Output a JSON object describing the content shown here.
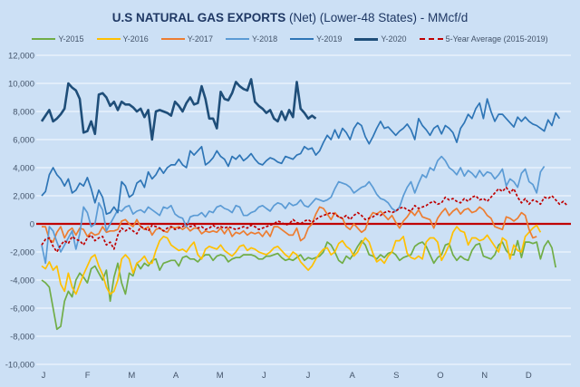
{
  "chart_data": {
    "type": "line",
    "title_bold": "U.S NATURAL GAS EXPORTS",
    "title_rest": " (Net) (Lower-48 States) - MMcf/d",
    "xlabel": "",
    "ylabel": "",
    "ylim": [
      -10000,
      12000
    ],
    "yticks": [
      12000,
      10000,
      8000,
      6000,
      4000,
      2000,
      0,
      -2000,
      -4000,
      -6000,
      -8000,
      -10000
    ],
    "ytick_labels": [
      "12,000",
      "10,000",
      "8,000",
      "6,000",
      "4,000",
      "2,000",
      "0",
      "-2,000",
      "-4,000",
      "-6,000",
      "-8,000",
      "-10,000"
    ],
    "categories": [
      "J",
      "F",
      "M",
      "A",
      "M",
      "J",
      "J",
      "A",
      "S",
      "O",
      "N",
      "D"
    ],
    "grid": true,
    "legend_position": "top",
    "zero_line_color": "#c00000",
    "series": [
      {
        "name": "Y-2015",
        "color": "#70ad47",
        "style": "solid",
        "values": [
          -4000,
          -4200,
          -4500,
          -6000,
          -7500,
          -7300,
          -5500,
          -4800,
          -5200,
          -4000,
          -3500,
          -3800,
          -4200,
          -3200,
          -3000,
          -3500,
          -4000,
          -3300,
          -5500,
          -3800,
          -2800,
          -4200,
          -5000,
          -3500,
          -3700,
          -2800,
          -3200,
          -2800,
          -3000,
          -2600,
          -2500,
          -3300,
          -2800,
          -2700,
          -2600,
          -2600,
          -3000,
          -2400,
          -2300,
          -2500,
          -2500,
          -2700,
          -2400,
          -2200,
          -2200,
          -2600,
          -2300,
          -2200,
          -2300,
          -2700,
          -2500,
          -2400,
          -2400,
          -2200,
          -2200,
          -2200,
          -2300,
          -2500,
          -2500,
          -2300,
          -2300,
          -2200,
          -2100,
          -2400,
          -2600,
          -2500,
          -2600,
          -2400,
          -2200,
          -2600,
          -2400,
          -2500,
          -2400,
          -2300,
          -2000,
          -1300,
          -1500,
          -2000,
          -2600,
          -2800,
          -2300,
          -2500,
          -2100,
          -1600,
          -1200,
          -1500,
          -2200,
          -2300,
          -2500,
          -2200,
          -2400,
          -2100,
          -2000,
          -2200,
          -2600,
          -2400,
          -2300,
          -2200,
          -1600,
          -1400,
          -1300,
          -1600,
          -2200,
          -2800,
          -2400,
          -2200,
          -1500,
          -1400,
          -2200,
          -2600,
          -2300,
          -2500,
          -2600,
          -1900,
          -1500,
          -1400,
          -2300,
          -2400,
          -2500,
          -2200,
          -1500,
          -1300,
          -1900,
          -2200,
          -2200,
          -1200,
          -2400,
          -1300,
          -1300,
          -1400,
          -1300,
          -2500,
          -1600,
          -1200,
          -1700,
          -3100
        ]
      },
      {
        "name": "Y-2016",
        "color": "#ffc000",
        "style": "solid",
        "values": [
          -3000,
          -3200,
          -2700,
          -3300,
          -3000,
          -4300,
          -4800,
          -3500,
          -4500,
          -5000,
          -4300,
          -3600,
          -3000,
          -2400,
          -2200,
          -3000,
          -3600,
          -4500,
          -5000,
          -4800,
          -4000,
          -2500,
          -2200,
          -2500,
          -3500,
          -2800,
          -2600,
          -2300,
          -2800,
          -2800,
          -1900,
          -1200,
          -900,
          -1000,
          -1500,
          -1700,
          -1900,
          -1800,
          -2000,
          -1600,
          -1300,
          -2200,
          -2500,
          -1800,
          -1600,
          -1700,
          -1800,
          -1500,
          -1900,
          -2100,
          -2300,
          -2000,
          -1600,
          -1500,
          -1900,
          -1700,
          -1800,
          -2000,
          -2100,
          -2200,
          -2000,
          -1700,
          -1600,
          -1900,
          -2200,
          -2400,
          -2000,
          -2200,
          -2700,
          -3000,
          -3300,
          -3000,
          -2500,
          -2100,
          -1800,
          -1700,
          -2200,
          -2000,
          -1400,
          -1200,
          -1600,
          -1800,
          -2300,
          -2000,
          -1400,
          -1000,
          -1300,
          -2100,
          -2700,
          -2500,
          -2800,
          -2300,
          -2000,
          -1200,
          -1200,
          -900,
          -2100,
          -2400,
          -2500,
          -2300,
          -2500,
          -1300,
          -1000,
          -1000,
          -1300,
          -2600,
          -2100,
          -1500,
          -600,
          -200,
          -500,
          -600,
          -1500,
          -1000,
          -1000,
          -1200,
          -1100,
          -800,
          -1200,
          -1600,
          -2000,
          -1000,
          -1200,
          -2500,
          -1500,
          -1900,
          -2000,
          -900,
          -600,
          -300,
          -100,
          -600
        ]
      },
      {
        "name": "Y-2017",
        "color": "#ed7d31",
        "style": "solid",
        "values": [
          -200,
          -200,
          -1100,
          -1300,
          -600,
          -200,
          -1000,
          -500,
          -300,
          -800,
          -300,
          -400,
          -900,
          -600,
          -800,
          -700,
          -200,
          -600,
          -500,
          -500,
          -400,
          200,
          300,
          0,
          -200,
          300,
          -200,
          -400,
          -200,
          -800,
          -400,
          -300,
          -500,
          -600,
          -200,
          -300,
          -200,
          -400,
          -200,
          -500,
          -300,
          -300,
          -700,
          -500,
          -600,
          -500,
          -600,
          -300,
          -700,
          -300,
          -900,
          -600,
          -700,
          -500,
          -800,
          -600,
          -700,
          -600,
          -900,
          -500,
          -900,
          -200,
          -200,
          -400,
          -600,
          -800,
          -800,
          -300,
          -1200,
          -1000,
          -300,
          0,
          700,
          1200,
          1100,
          700,
          300,
          800,
          500,
          400,
          -200,
          -400,
          0,
          -300,
          -600,
          -400,
          400,
          800,
          700,
          900,
          600,
          300,
          600,
          100,
          -300,
          200,
          500,
          900,
          600,
          1000,
          500,
          400,
          300,
          -300,
          400,
          800,
          1100,
          600,
          900,
          1100,
          700,
          1000,
          1100,
          800,
          900,
          1200,
          1000,
          600,
          400,
          -200,
          -300,
          -400,
          500,
          400,
          200,
          400,
          800,
          600,
          -400,
          -1000,
          -900
        ]
      },
      {
        "name": "Y-2018",
        "color": "#5b9bd5",
        "style": "solid",
        "values": [
          -1500,
          -2800,
          -200,
          -500,
          -1300,
          -2000,
          -1500,
          -1000,
          -500,
          -1800,
          -700,
          1200,
          800,
          -200,
          0,
          1500,
          1000,
          -500,
          0,
          500,
          1000,
          900,
          1200,
          1300,
          700,
          900,
          1000,
          800,
          1200,
          1000,
          800,
          600,
          1200,
          1100,
          1300,
          700,
          500,
          400,
          -200,
          500,
          600,
          600,
          800,
          500,
          900,
          800,
          1200,
          1300,
          1100,
          1000,
          800,
          1300,
          1200,
          600,
          600,
          800,
          900,
          1200,
          1300,
          1100,
          900,
          1300,
          1500,
          1400,
          1100,
          1500,
          1300,
          1400,
          1700,
          1300,
          1200,
          1500,
          1800,
          1700,
          1600,
          1700,
          1900,
          2500,
          3000,
          2900,
          2800,
          2600,
          2200,
          2400,
          2600,
          2700,
          3000,
          2600,
          2100,
          1800,
          1700,
          1500,
          1100,
          900,
          1200,
          2000,
          2600,
          3000,
          2200,
          2900,
          3500,
          3300,
          4000,
          3800,
          4500,
          4800,
          4500,
          4000,
          3800,
          3500,
          4000,
          3400,
          3800,
          3600,
          3300,
          3800,
          3400,
          3700,
          3600,
          3200,
          3500,
          3900,
          2700,
          3200,
          3000,
          2600,
          3600,
          3900,
          3000,
          2800,
          2200,
          3700,
          4100
        ]
      },
      {
        "name": "Y-2019",
        "color": "#2e75b6",
        "style": "solid",
        "values": [
          2000,
          2300,
          3500,
          4000,
          3500,
          3200,
          2700,
          3200,
          2200,
          2400,
          2900,
          2700,
          3300,
          2500,
          1500,
          2400,
          1900,
          700,
          800,
          1200,
          800,
          3000,
          2700,
          1900,
          2100,
          2900,
          3100,
          2600,
          3700,
          3200,
          3500,
          4000,
          3600,
          4000,
          4200,
          4200,
          4600,
          4200,
          4000,
          5200,
          4900,
          5200,
          5500,
          4200,
          4400,
          4700,
          5200,
          4800,
          4600,
          4100,
          4800,
          4600,
          4900,
          4500,
          4700,
          5000,
          4600,
          4300,
          4200,
          4500,
          4700,
          4600,
          4400,
          4300,
          4800,
          4700,
          4600,
          4900,
          5000,
          5500,
          5300,
          5400,
          4900,
          5200,
          5800,
          6300,
          6000,
          6700,
          6100,
          6800,
          6500,
          6000,
          6800,
          7200,
          7000,
          6200,
          5700,
          6200,
          6800,
          7300,
          6800,
          6900,
          6600,
          6300,
          6600,
          6800,
          7100,
          6700,
          6000,
          7500,
          7000,
          6700,
          6300,
          6800,
          7000,
          6400,
          7000,
          6800,
          6500,
          5800,
          6800,
          7200,
          7800,
          7500,
          8200,
          8600,
          7500,
          8900,
          8000,
          7300,
          7800,
          7800,
          7500,
          7200,
          6900,
          7600,
          7300,
          7600,
          7300,
          7100,
          7000,
          6800,
          6600,
          7400,
          7000,
          7900,
          7500
        ]
      },
      {
        "name": "Y-2020",
        "color": "#1f4e79",
        "style": "thick",
        "values": [
          7300,
          7700,
          8100,
          7300,
          7500,
          7800,
          8200,
          10000,
          9700,
          9500,
          8900,
          6500,
          6600,
          7300,
          6400,
          9200,
          9300,
          9000,
          8400,
          8700,
          8100,
          8700,
          8500,
          8500,
          8300,
          8000,
          8200,
          7600,
          8100,
          6000,
          8000,
          8100,
          8000,
          7900,
          7700,
          8700,
          8400,
          8000,
          8600,
          9000,
          8500,
          8600,
          9800,
          8900,
          7500,
          7500,
          6800,
          9400,
          8900,
          8800,
          9300,
          10100,
          9800,
          9600,
          9500,
          10300,
          8700,
          8400,
          8200,
          7900,
          8100,
          7500,
          7300,
          8000,
          7400,
          8100,
          7600,
          10100,
          8200,
          7900,
          7500,
          7700,
          7500
        ]
      },
      {
        "name": "5-Year Average (2015-2019)",
        "color": "#c00000",
        "style": "dashed",
        "values": [
          -1500,
          -1100,
          -1000,
          -1600,
          -2000,
          -1500,
          -1200,
          -1400,
          -900,
          -1100,
          -1200,
          -1500,
          -1000,
          -800,
          -1200,
          -1000,
          -900,
          -1500,
          -1300,
          -1800,
          -800,
          -300,
          -500,
          -300,
          -500,
          -700,
          -200,
          -300,
          -500,
          -100,
          -200,
          -300,
          -500,
          -300,
          -200,
          -400,
          -300,
          -200,
          0,
          -200,
          -100,
          -300,
          -200,
          -400,
          -300,
          -100,
          -300,
          -200,
          -300,
          -200,
          -300,
          -400,
          -300,
          -200,
          -300,
          -100,
          -200,
          -400,
          -300,
          -200,
          -100,
          0,
          200,
          100,
          -100,
          0,
          300,
          100,
          0,
          200,
          300,
          100,
          300,
          500,
          600,
          700,
          800,
          700,
          500,
          400,
          600,
          300,
          600,
          800,
          600,
          300,
          400,
          500,
          700,
          600,
          800,
          900,
          800,
          900,
          1100,
          1200,
          1000,
          900,
          1300,
          1100,
          1200,
          1300,
          1500,
          1600,
          1400,
          1500,
          1900,
          1700,
          1800,
          1600,
          1500,
          1800,
          1600,
          1900,
          2000,
          1700,
          1800,
          1600,
          1900,
          2200,
          2500,
          2300,
          2600,
          2200,
          2500,
          1900,
          1500,
          1800,
          1400,
          1700,
          1600,
          1400,
          1900,
          1800,
          2000,
          1700,
          1400,
          1600,
          1300
        ]
      }
    ]
  }
}
